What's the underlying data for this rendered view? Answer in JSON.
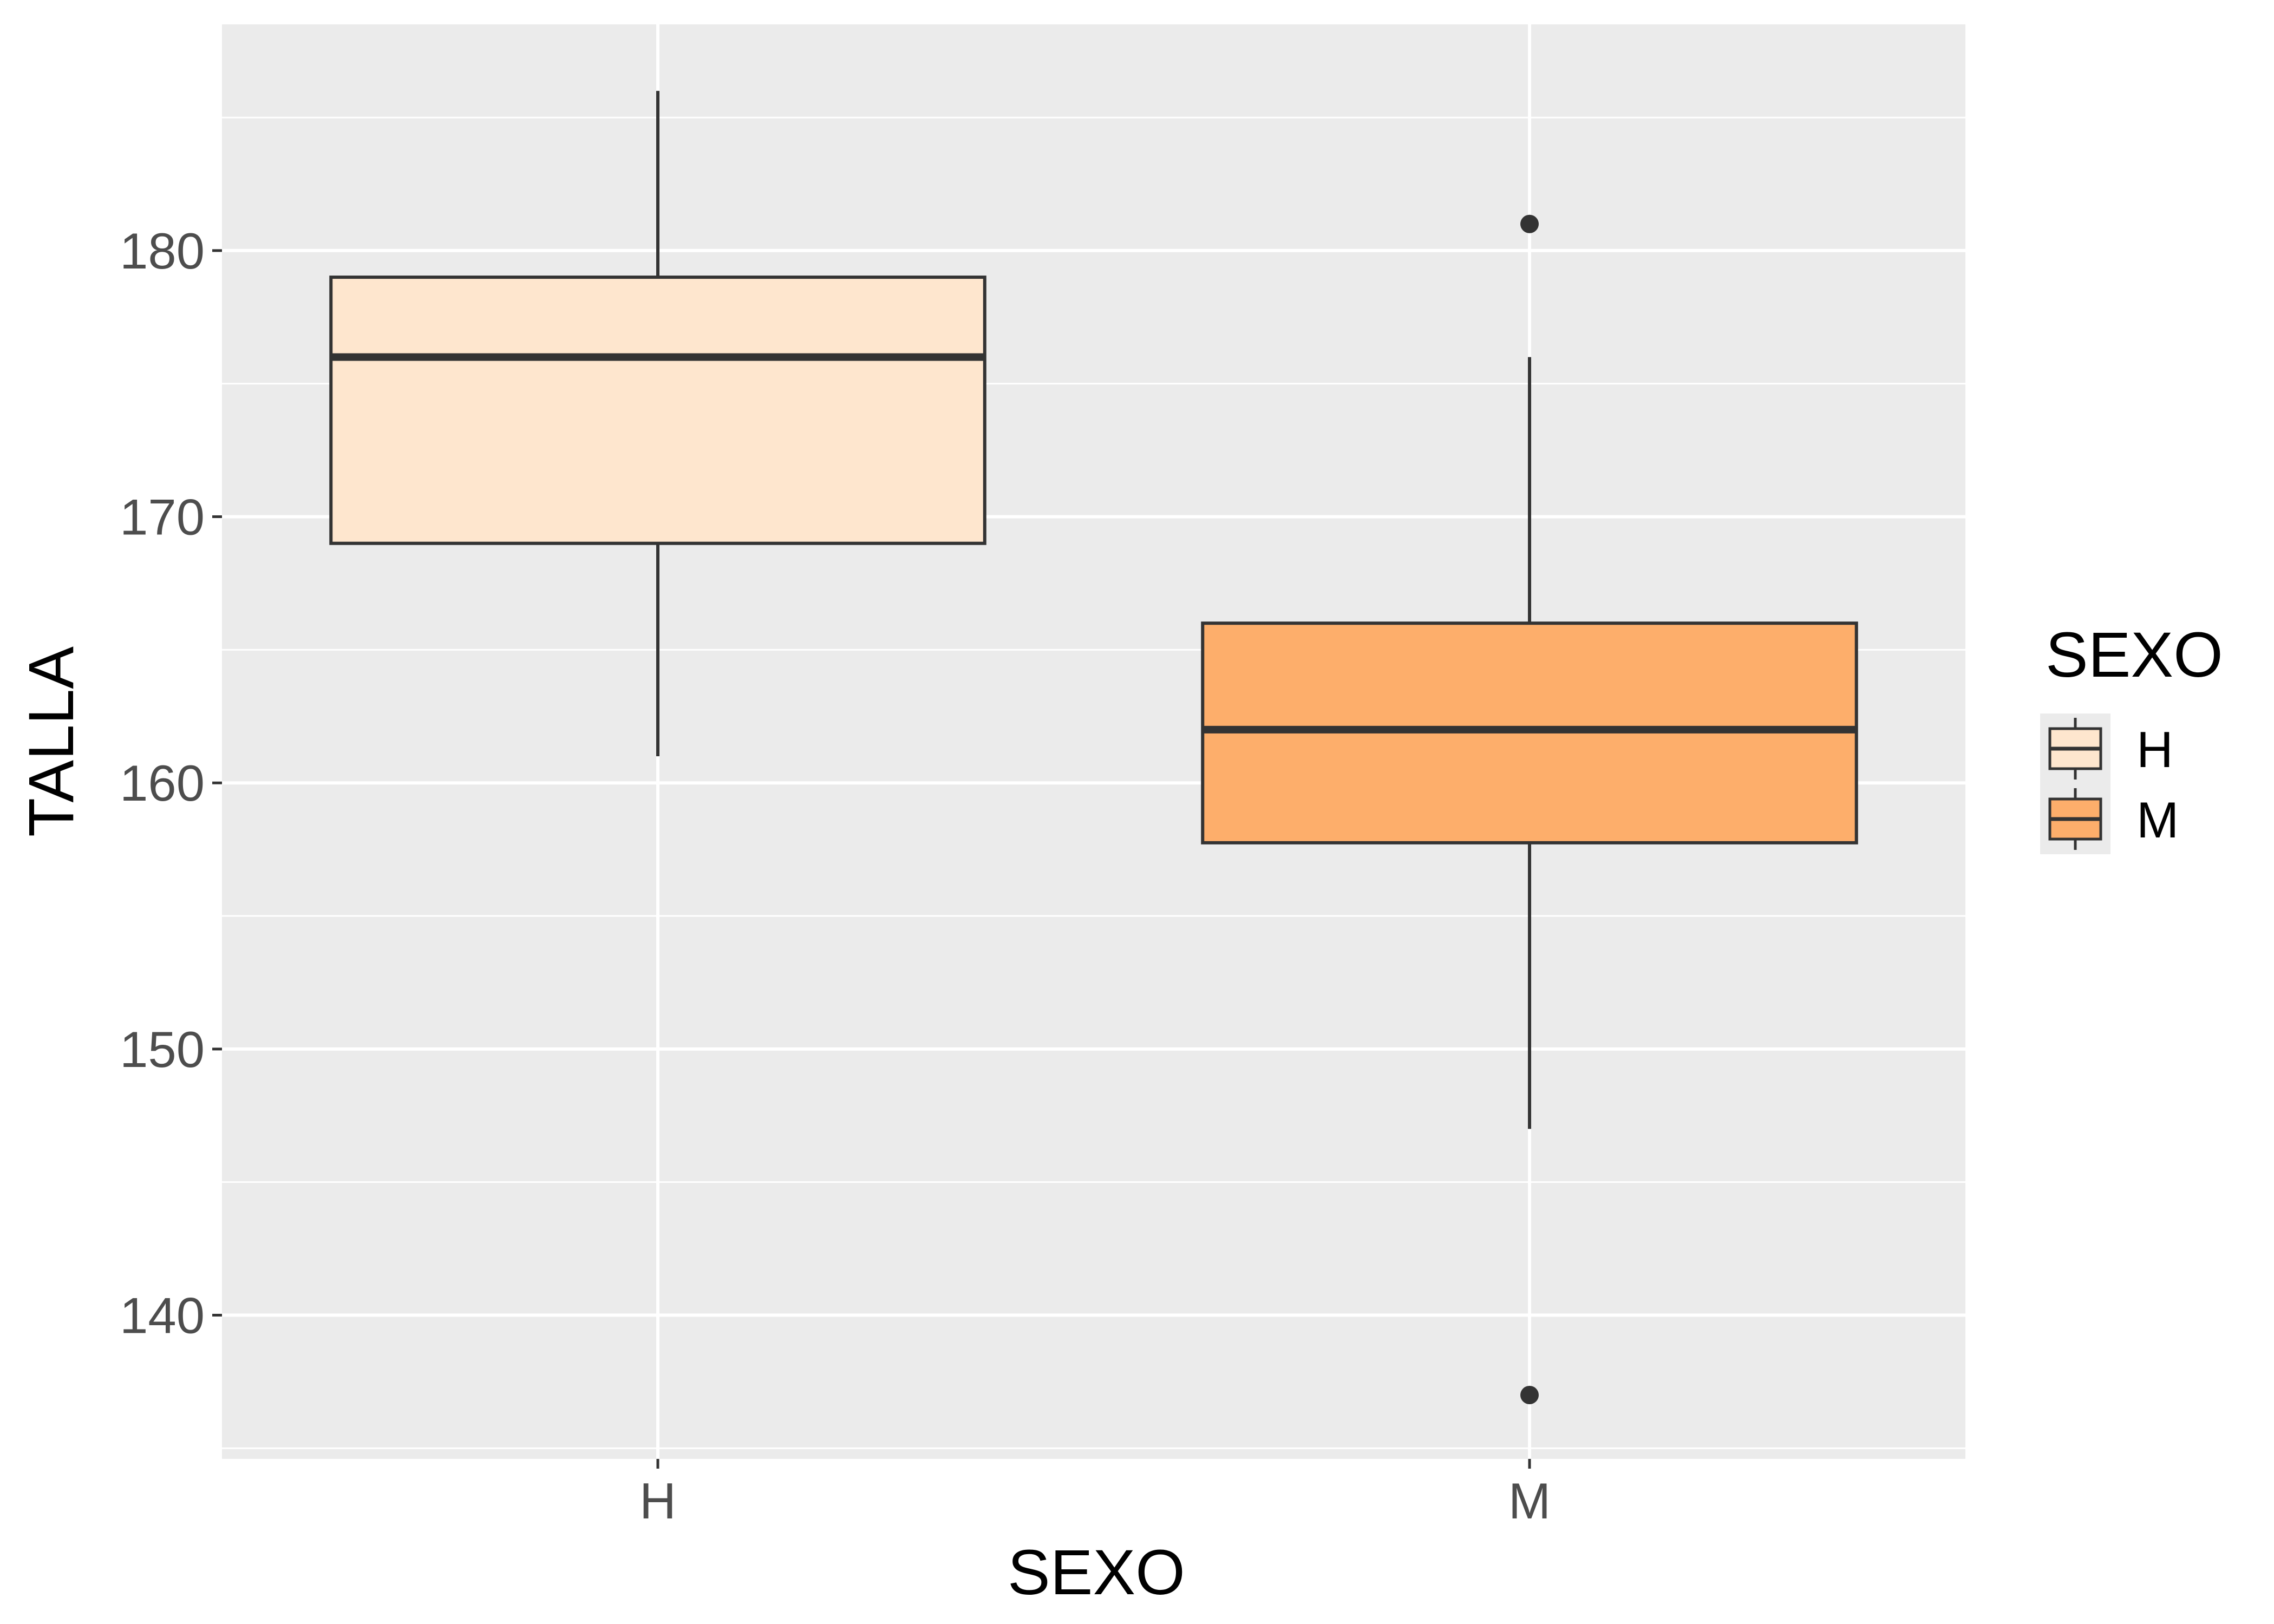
{
  "chart_data": {
    "type": "boxplot",
    "title": "",
    "xlabel": "SEXO",
    "ylabel": "TALLA",
    "categories": [
      "H",
      "M"
    ],
    "ylim": [
      134.6,
      188.5
    ],
    "yticks": [
      140,
      150,
      160,
      170,
      180
    ],
    "grid": true,
    "legend": {
      "title": "SEXO",
      "position": "right",
      "items": [
        {
          "label": "H",
          "color": "#FEE6CE"
        },
        {
          "label": "M",
          "color": "#FDAE6B"
        }
      ]
    },
    "series": [
      {
        "category": "H",
        "color": "#FEE6CE",
        "min": 161,
        "q1": 169,
        "median": 176,
        "q3": 179,
        "max": 186,
        "outliers": []
      },
      {
        "category": "M",
        "color": "#FDAE6B",
        "min": 147,
        "q1": 157.75,
        "median": 162,
        "q3": 166,
        "max": 176,
        "outliers": [
          181,
          137
        ]
      }
    ]
  }
}
